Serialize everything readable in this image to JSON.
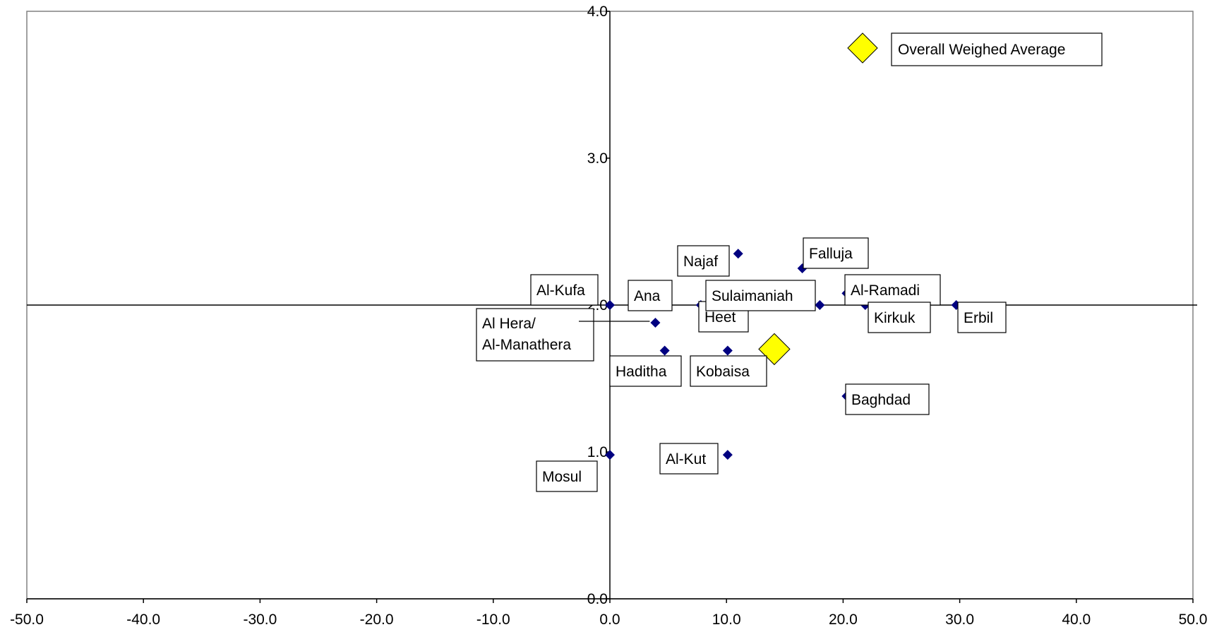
{
  "chart_data": {
    "type": "scatter",
    "title": "",
    "xlabel": "",
    "ylabel": "",
    "xlim": [
      -50,
      50
    ],
    "ylim": [
      0,
      4
    ],
    "x_ticks": [
      "-50.0",
      "-40.0",
      "-30.0",
      "-20.0",
      "-10.0",
      "0.0",
      "10.0",
      "20.0",
      "30.0",
      "40.0",
      "50.0"
    ],
    "y_ticks": [
      "0.0",
      "1.0",
      "2.0",
      "3.0",
      "4.0"
    ],
    "grid": false,
    "reference_lines": {
      "x": 0,
      "y": 2.0
    },
    "colors": {
      "points": "#000080",
      "average": "#ffff00"
    },
    "series": [
      {
        "name": "",
        "points": [
          {
            "label": "Al-Kufa",
            "x": 0.0,
            "y": 2.0
          },
          {
            "label": "Ana",
            "x": 3.9,
            "y": 2.0
          },
          {
            "label": "Al Hera/ Al-Manathera",
            "x": 3.9,
            "y": 1.88
          },
          {
            "label": "Heet",
            "x": 7.8,
            "y": 2.0
          },
          {
            "label": "Najaf",
            "x": 11.0,
            "y": 2.35
          },
          {
            "label": "Falluja",
            "x": 16.5,
            "y": 2.25
          },
          {
            "label": "Sulaimaniah",
            "x": 18.0,
            "y": 2.0
          },
          {
            "label": "Al-Ramadi",
            "x": 20.3,
            "y": 2.08
          },
          {
            "label": "Kirkuk",
            "x": 21.9,
            "y": 2.0
          },
          {
            "label": "Erbil",
            "x": 29.7,
            "y": 2.0
          },
          {
            "label": "Haditha",
            "x": 4.7,
            "y": 1.69
          },
          {
            "label": "Kobaisa",
            "x": 10.1,
            "y": 1.69
          },
          {
            "label": "Baghdad",
            "x": 20.3,
            "y": 1.38
          },
          {
            "label": "Al-Kut",
            "x": 10.1,
            "y": 0.98
          },
          {
            "label": "Mosul",
            "x": 0.0,
            "y": 0.98
          }
        ]
      },
      {
        "name": "Overall Weighed Average",
        "points": [
          {
            "label": "",
            "x": 14.1,
            "y": 1.7
          }
        ]
      }
    ],
    "legend": {
      "placement": "top-right",
      "entries": [
        "Overall Weighed Average"
      ]
    }
  }
}
